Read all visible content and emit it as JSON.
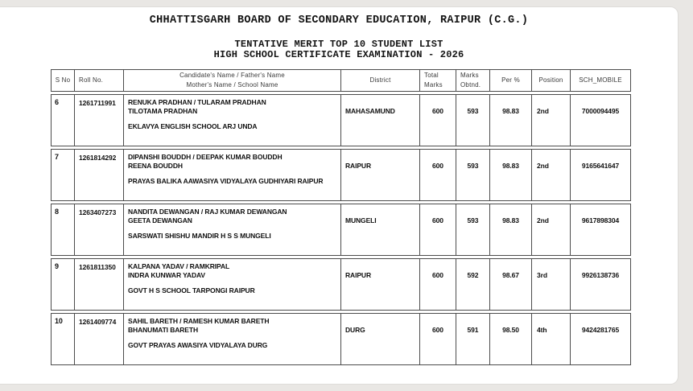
{
  "page": {
    "board_title": "CHHATTISGARH BOARD OF SECONDARY EDUCATION, RAIPUR (C.G.)",
    "subtitle_line1": "TENTATIVE MERIT TOP 10 STUDENT LIST",
    "subtitle_line2": "HIGH SCHOOL CERTIFICATE EXAMINATION - 2026"
  },
  "table": {
    "headers": {
      "sno": "S No",
      "roll": "Roll No.",
      "candidate_line1": "Candidate's Name / Father's Name",
      "candidate_line2": "Mother's Name / School Name",
      "district": "District",
      "total_line1": "Total",
      "total_line2": "Marks",
      "marks_line1": "Marks",
      "marks_line2": "Obtnd.",
      "per": "Per %",
      "position": "Position",
      "mobile": "SCH_MOBILE"
    },
    "rows": [
      {
        "sno": "6",
        "roll": "1261711991",
        "candidate_father": "RENUKA PRADHAN / TULARAM PRADHAN",
        "mother": "TILOTAMA PRADHAN",
        "school": "EKLAVYA ENGLISH SCHOOL ARJ UNDA",
        "district": "MAHASAMUND",
        "total_marks": "600",
        "marks_obtained": "593",
        "percent": "98.83",
        "position": "2nd",
        "sch_mobile": "7000094495"
      },
      {
        "sno": "7",
        "roll": "1261814292",
        "candidate_father": "DIPANSHI BOUDDH / DEEPAK KUMAR BOUDDH",
        "mother": "REENA BOUDDH",
        "school": "PRAYAS BALIKA AAWASIYA VIDYALAYA GUDHIYARI RAIPUR",
        "district": "RAIPUR",
        "total_marks": "600",
        "marks_obtained": "593",
        "percent": "98.83",
        "position": "2nd",
        "sch_mobile": "9165641647"
      },
      {
        "sno": "8",
        "roll": "1263407273",
        "candidate_father": "NANDITA DEWANGAN / RAJ KUMAR DEWANGAN",
        "mother": "GEETA DEWANGAN",
        "school": "SARSWATI SHISHU MANDIR H S S MUNGELI",
        "district": "MUNGELI",
        "total_marks": "600",
        "marks_obtained": "593",
        "percent": "98.83",
        "position": "2nd",
        "sch_mobile": "9617898304"
      },
      {
        "sno": "9",
        "roll": "1261811350",
        "candidate_father": "KALPANA YADAV / RAMKRIPAL",
        "mother": "INDRA KUNWAR YADAV",
        "school": "GOVT H S SCHOOL TARPONGI RAIPUR",
        "district": "RAIPUR",
        "total_marks": "600",
        "marks_obtained": "592",
        "percent": "98.67",
        "position": "3rd",
        "sch_mobile": "9926138736"
      },
      {
        "sno": "10",
        "roll": "1261409774",
        "candidate_father": "SAHIL BARETH / RAMESH KUMAR BARETH",
        "mother": "BHANUMATI BARETH",
        "school": "GOVT PRAYAS AWASIYA VIDYALAYA DURG",
        "district": "DURG",
        "total_marks": "600",
        "marks_obtained": "591",
        "percent": "98.50",
        "position": "4th",
        "sch_mobile": "9424281765"
      }
    ]
  },
  "colors": {
    "page_background": "#ffffff",
    "outer_background": "#e9e7e4",
    "table_border": "#4c4c4c",
    "text": "#101010"
  }
}
